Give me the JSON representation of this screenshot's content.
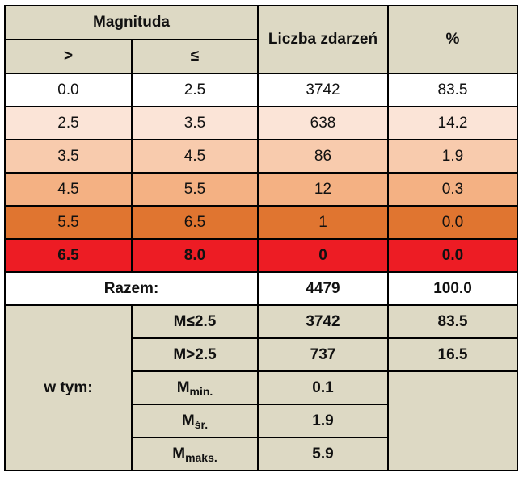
{
  "header": {
    "magnitude": "Magnituda",
    "gt": ">",
    "le": "≤",
    "count": "Liczba zdarzeń",
    "percent": "%"
  },
  "rows": [
    {
      "from": "0.0",
      "to": "2.5",
      "count": "3742",
      "percent": "83.5"
    },
    {
      "from": "2.5",
      "to": "3.5",
      "count": "638",
      "percent": "14.2"
    },
    {
      "from": "3.5",
      "to": "4.5",
      "count": "86",
      "percent": "1.9"
    },
    {
      "from": "4.5",
      "to": "5.5",
      "count": "12",
      "percent": "0.3"
    },
    {
      "from": "5.5",
      "to": "6.5",
      "count": "1",
      "percent": "0.0"
    },
    {
      "from": "6.5",
      "to": "8.0",
      "count": "0",
      "percent": "0.0"
    }
  ],
  "total": {
    "label": "Razem:",
    "count": "4479",
    "percent": "100.0"
  },
  "breakdown": {
    "label": "w tym:",
    "le_label": "M≤2.5",
    "le_count": "3742",
    "le_percent": "83.5",
    "gt_label": "M>2.5",
    "gt_count": "737",
    "gt_percent": "16.5",
    "m_symbol": "M",
    "min_sub": "min.",
    "min_value": "0.1",
    "avg_sub": "śr.",
    "avg_value": "1.9",
    "max_sub": "maks.",
    "max_value": "5.9"
  },
  "colors": {
    "header_bg": "#ddd9c4",
    "row_colors": [
      "#ffffff",
      "#fbe4d7",
      "#f8cbad",
      "#f4b183",
      "#e07530",
      "#ed1c24"
    ]
  }
}
